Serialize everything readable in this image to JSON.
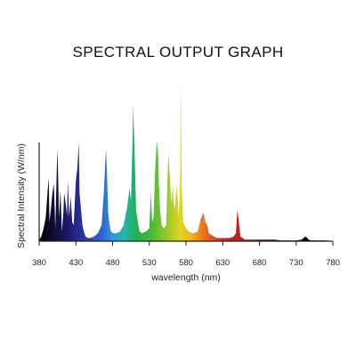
{
  "chart_data": {
    "type": "area",
    "title": "SPECTRAL OUTPUT GRAPH",
    "xlabel": "wavelength (nm)",
    "ylabel": "Spectral Intensity (W/nm)",
    "xlim": [
      380,
      780
    ],
    "ylim": [
      0,
      1
    ],
    "x_ticks": [
      380,
      430,
      480,
      530,
      580,
      630,
      680,
      730,
      780
    ],
    "y_ticks": [],
    "grid": false,
    "legend": "none",
    "fill": "wavelength-colored spectrum",
    "series": [
      {
        "x": [
          380,
          383,
          386,
          389,
          391,
          393,
          394,
          396,
          398,
          400,
          402,
          404,
          405,
          407,
          409,
          411,
          413,
          414,
          416,
          418,
          419,
          421,
          423,
          425,
          427,
          430,
          432,
          434,
          435,
          437,
          439,
          441,
          443,
          446,
          450,
          455,
          460,
          465,
          468,
          471,
          472,
          474,
          476,
          478,
          481,
          485,
          490,
          495,
          500,
          503,
          505,
          507,
          508,
          510,
          512,
          515,
          517,
          520,
          525,
          530,
          532,
          534,
          536,
          538,
          540,
          542,
          543,
          545,
          547,
          550,
          553,
          555,
          556,
          558,
          560,
          562,
          563,
          565,
          567,
          569,
          570,
          571,
          572,
          573,
          574,
          576,
          578,
          580,
          584,
          590,
          596,
          600,
          604,
          606,
          609,
          611,
          614,
          618,
          622,
          630,
          640,
          645,
          648,
          650,
          652,
          654,
          657,
          660,
          665,
          670,
          680,
          690,
          700,
          710,
          720,
          730,
          738,
          740,
          743,
          745,
          747,
          750,
          760,
          770,
          780
        ],
        "values": [
          0.01,
          0.03,
          0.08,
          0.15,
          0.28,
          0.4,
          0.12,
          0.2,
          0.3,
          0.36,
          0.08,
          0.45,
          0.58,
          0.15,
          0.32,
          0.06,
          0.18,
          0.3,
          0.24,
          0.16,
          0.38,
          0.15,
          0.28,
          0.12,
          0.1,
          0.38,
          0.46,
          0.62,
          0.3,
          0.2,
          0.1,
          0.06,
          0.03,
          0.02,
          0.02,
          0.03,
          0.05,
          0.1,
          0.3,
          0.58,
          0.48,
          0.18,
          0.1,
          0.06,
          0.05,
          0.05,
          0.06,
          0.1,
          0.22,
          0.33,
          0.25,
          0.6,
          0.86,
          0.55,
          0.2,
          0.1,
          0.06,
          0.05,
          0.06,
          0.08,
          0.3,
          0.12,
          0.15,
          0.45,
          0.63,
          0.55,
          0.36,
          0.18,
          0.1,
          0.08,
          0.1,
          0.42,
          0.55,
          0.4,
          0.24,
          0.35,
          0.25,
          0.2,
          0.35,
          0.25,
          0.15,
          0.25,
          0.4,
          1.0,
          0.35,
          0.12,
          0.1,
          0.08,
          0.06,
          0.05,
          0.06,
          0.14,
          0.18,
          0.12,
          0.1,
          0.05,
          0.04,
          0.03,
          0.02,
          0.02,
          0.02,
          0.03,
          0.05,
          0.2,
          0.12,
          0.03,
          0.02,
          0.01,
          0.01,
          0.01,
          0.01,
          0.01,
          0.01,
          0.005,
          0.005,
          0.005,
          0.01,
          0.02,
          0.03,
          0.02,
          0.01,
          0.005,
          0.005,
          0.005,
          0.0
        ]
      }
    ]
  }
}
